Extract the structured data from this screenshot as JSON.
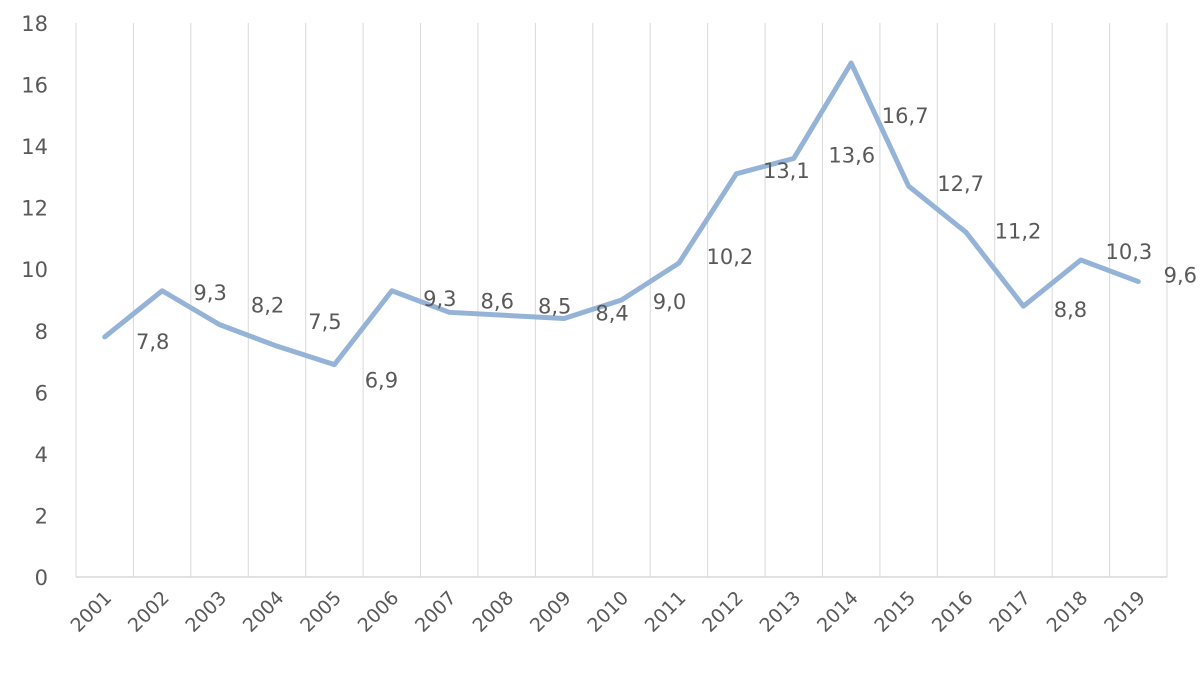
{
  "chart_data": {
    "type": "line",
    "title": "",
    "xlabel": "",
    "ylabel": "",
    "categories": [
      "2001",
      "2002",
      "2003",
      "2004",
      "2005",
      "2006",
      "2007",
      "2008",
      "2009",
      "2010",
      "2011",
      "2012",
      "2013",
      "2014",
      "2015",
      "2016",
      "2017",
      "2018",
      "2019"
    ],
    "values": [
      7.8,
      9.3,
      8.2,
      7.5,
      6.9,
      9.3,
      8.6,
      8.5,
      8.4,
      9.0,
      10.2,
      13.1,
      13.6,
      16.7,
      12.7,
      11.2,
      8.8,
      10.3,
      9.6
    ],
    "data_labels": [
      "7,8",
      "9,3",
      "8,2",
      "7,5",
      "6,9",
      "9,3",
      "8,6",
      "8,5",
      "8,4",
      "9,0",
      "10,2",
      "13,1",
      "13,6",
      "16,7",
      "12,7",
      "11,2",
      "8,8",
      "10,3",
      "9,6"
    ],
    "ylim": [
      0,
      18
    ],
    "yticks": [
      "0",
      "2",
      "4",
      "6",
      "8",
      "10",
      "12",
      "14",
      "16",
      "18"
    ],
    "grid": "vertical",
    "legend": "none",
    "line_color": "#95B3D7"
  }
}
